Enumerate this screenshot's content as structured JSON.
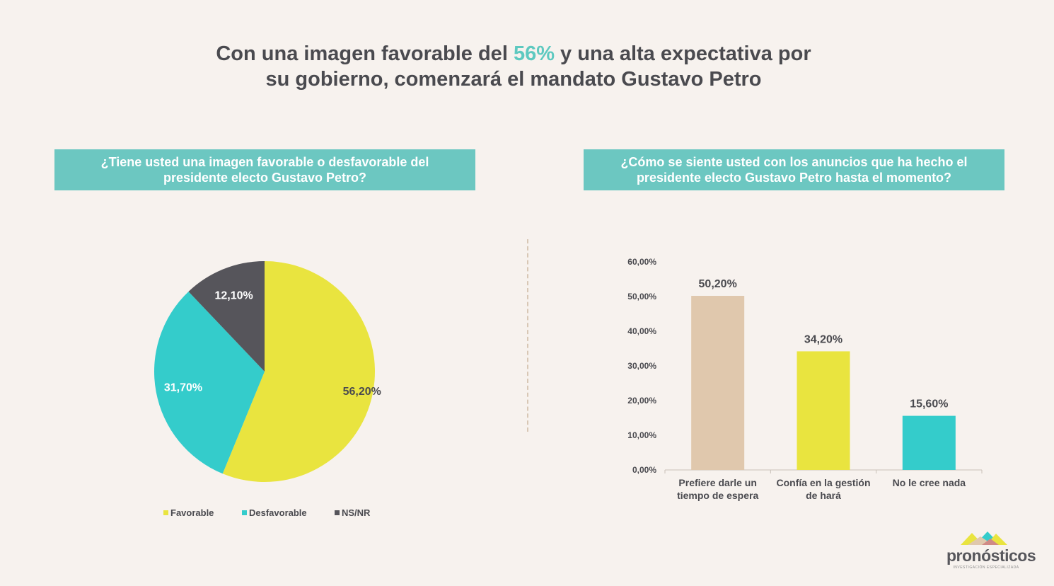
{
  "title": {
    "part1": "Con una imagen favorable del ",
    "highlight": "56%",
    "part2": " y una alta expectativa por",
    "line2": "su gobierno, comenzará el mandato Gustavo Petro"
  },
  "questions": {
    "q1": "¿Tiene usted una imagen favorable o desfavorable del presidente electo Gustavo Petro?",
    "q2": "¿Cómo se siente usted con los anuncios que ha hecho el presidente electo Gustavo Petro hasta el momento?"
  },
  "colors": {
    "favorable": "#e9e43f",
    "desfavorable": "#34cccb",
    "nsnr": "#56555b",
    "espera": "#e0c8ad",
    "confia": "#e9e43f",
    "nocree": "#34cccb"
  },
  "chart_data": [
    {
      "type": "pie",
      "title": "",
      "categories": [
        "Favorable",
        "Desfavorable",
        "NS/NR"
      ],
      "values": [
        56.2,
        31.7,
        12.1
      ],
      "labels": [
        "56,20%",
        "31,70%",
        "12,10%"
      ],
      "legend": "bottom"
    },
    {
      "type": "bar",
      "title": "",
      "categories": [
        [
          "Prefiere darle un",
          "tiempo de espera"
        ],
        [
          "Confía en la gestión",
          "de hará"
        ],
        [
          "No le cree nada"
        ]
      ],
      "values": [
        50.2,
        34.2,
        15.6
      ],
      "labels": [
        "50,20%",
        "34,20%",
        "15,60%"
      ],
      "yticks": [
        "0,00%",
        "10,00%",
        "20,00%",
        "30,00%",
        "40,00%",
        "50,00%",
        "60,00%"
      ],
      "ylim": [
        0,
        60
      ],
      "grid": false
    }
  ],
  "logo": {
    "name": "pronósticos",
    "tagline": "INVESTIGACIÓN ESPECIALIZADA"
  }
}
